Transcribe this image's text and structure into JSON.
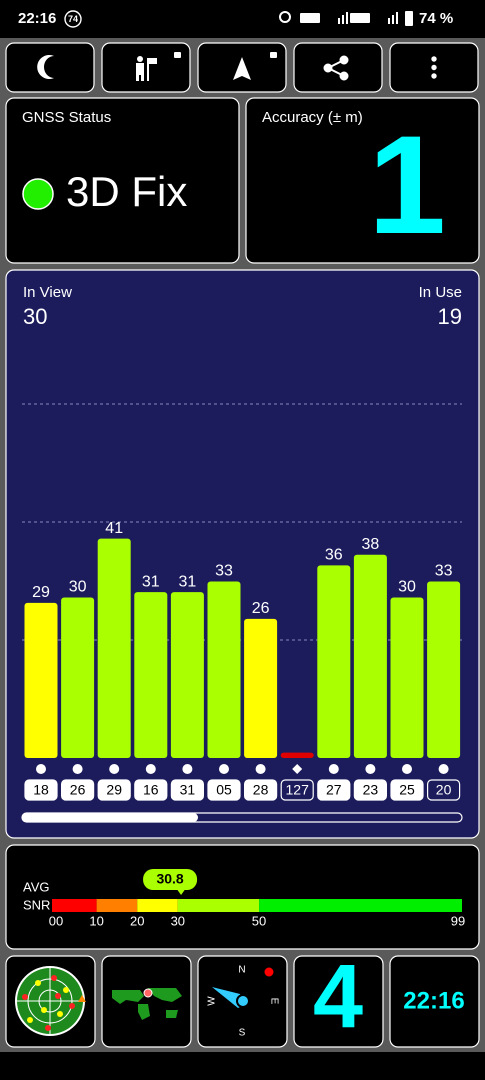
{
  "status_bar": {
    "time": "22:16",
    "notification_count": "74",
    "battery": "74 %"
  },
  "gnss_status": {
    "label": "GNSS Status",
    "value": "3D Fix"
  },
  "accuracy": {
    "label": "Accuracy (± m)",
    "value": "1"
  },
  "satellites": {
    "in_view_label": "In View",
    "in_view": "30",
    "in_use_label": "In Use",
    "in_use": "19",
    "items": [
      {
        "id": "18",
        "snr": 29,
        "color": "#ffff00",
        "shape": "dot",
        "used": true,
        "show_value": true
      },
      {
        "id": "26",
        "snr": 30,
        "color": "#aaff00",
        "shape": "dot",
        "used": true,
        "show_value": true
      },
      {
        "id": "29",
        "snr": 41,
        "color": "#aaff00",
        "shape": "dot",
        "used": true,
        "show_value": true
      },
      {
        "id": "16",
        "snr": 31,
        "color": "#aaff00",
        "shape": "dot",
        "used": true,
        "show_value": true
      },
      {
        "id": "31",
        "snr": 31,
        "color": "#aaff00",
        "shape": "dot",
        "used": true,
        "show_value": true
      },
      {
        "id": "05",
        "snr": 33,
        "color": "#aaff00",
        "shape": "dot",
        "used": true,
        "show_value": true
      },
      {
        "id": "28",
        "snr": 26,
        "color": "#ffff00",
        "shape": "dot",
        "used": true,
        "show_value": true
      },
      {
        "id": "127",
        "snr": 1,
        "color": "#e00000",
        "shape": "diamond",
        "used": false,
        "show_value": false
      },
      {
        "id": "27",
        "snr": 36,
        "color": "#aaff00",
        "shape": "dot",
        "used": true,
        "show_value": true
      },
      {
        "id": "23",
        "snr": 38,
        "color": "#aaff00",
        "shape": "dot",
        "used": true,
        "show_value": true
      },
      {
        "id": "25",
        "snr": 30,
        "color": "#aaff00",
        "shape": "dot",
        "used": true,
        "show_value": true
      },
      {
        "id": "20",
        "snr": 33,
        "color": "#aaff00",
        "shape": "dot",
        "used": false,
        "show_value": true
      }
    ]
  },
  "avg_snr": {
    "label_top": "AVG",
    "label_bottom": "SNR",
    "value": 30.8,
    "scale": [
      {
        "value": 0,
        "label": "00"
      },
      10,
      20,
      30,
      50,
      99
    ],
    "band_colors": [
      "#ff0000",
      "#ff7f00",
      "#ffff00",
      "#aaff00",
      "#00ee00"
    ]
  },
  "tiles": {
    "satellite_count": "4",
    "clock": "22:16",
    "compass": {
      "north": "N",
      "east": "E",
      "south": "S",
      "west": "W"
    }
  }
}
